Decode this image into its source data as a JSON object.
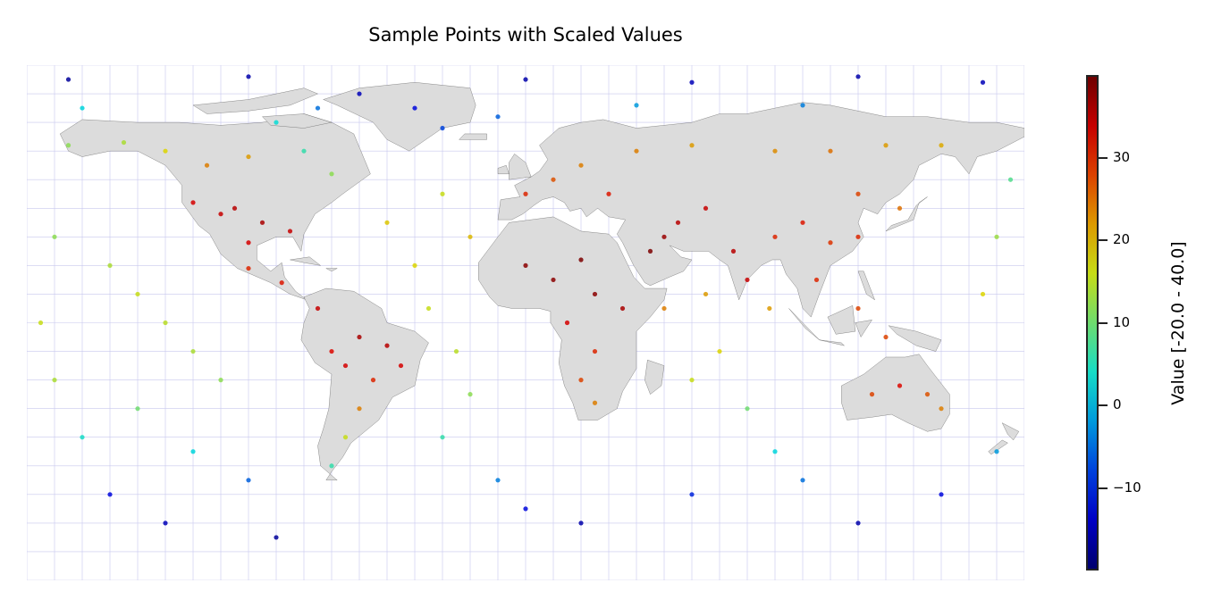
{
  "title": "Sample Points with Scaled Values",
  "colorbar": {
    "label": "Value [-20.0 - 40.0]",
    "ticks": [
      {
        "value": 30,
        "label": "30"
      },
      {
        "value": 20,
        "label": "20"
      },
      {
        "value": 10,
        "label": "10"
      },
      {
        "value": 0,
        "label": "0"
      },
      {
        "value": -10,
        "label": "−10"
      }
    ],
    "range": [
      -20,
      40
    ],
    "colormap": "jet"
  },
  "colors": {
    "land": "#dcdcdc",
    "coastline": "#222222",
    "grid": "#c8c8ee",
    "background": "#ffffff"
  },
  "chart_data": {
    "type": "scatter",
    "title": "Sample Points with Scaled Values",
    "projection": "equirectangular",
    "xlim": [
      -180,
      180
    ],
    "ylim": [
      -90,
      90
    ],
    "grid": true,
    "color_scale": {
      "min": -20,
      "max": 40,
      "cmap": "jet"
    },
    "points": [
      {
        "lon": -105,
        "lat": 40,
        "v": 35
      },
      {
        "lon": -110,
        "lat": 38,
        "v": 34
      },
      {
        "lon": -95,
        "lat": 35,
        "v": 36
      },
      {
        "lon": -120,
        "lat": 42,
        "v": 33
      },
      {
        "lon": -85,
        "lat": 32,
        "v": 34
      },
      {
        "lon": -100,
        "lat": 28,
        "v": 33
      },
      {
        "lon": -115,
        "lat": 55,
        "v": 24
      },
      {
        "lon": -100,
        "lat": 58,
        "v": 22
      },
      {
        "lon": -130,
        "lat": 60,
        "v": 18
      },
      {
        "lon": -145,
        "lat": 63,
        "v": 14
      },
      {
        "lon": -80,
        "lat": 60,
        "v": 6
      },
      {
        "lon": -70,
        "lat": 52,
        "v": 12
      },
      {
        "lon": -165,
        "lat": 62,
        "v": 12
      },
      {
        "lon": -90,
        "lat": 70,
        "v": 3
      },
      {
        "lon": -75,
        "lat": 75,
        "v": -5
      },
      {
        "lon": -60,
        "lat": 80,
        "v": -15
      },
      {
        "lon": -40,
        "lat": 75,
        "v": -12
      },
      {
        "lon": -30,
        "lat": 68,
        "v": -8
      },
      {
        "lon": -100,
        "lat": 19,
        "v": 30
      },
      {
        "lon": -88,
        "lat": 14,
        "v": 31
      },
      {
        "lon": -75,
        "lat": 5,
        "v": 34
      },
      {
        "lon": -60,
        "lat": -5,
        "v": 36
      },
      {
        "lon": -50,
        "lat": -8,
        "v": 35
      },
      {
        "lon": -65,
        "lat": -15,
        "v": 33
      },
      {
        "lon": -55,
        "lat": -20,
        "v": 30
      },
      {
        "lon": -60,
        "lat": -30,
        "v": 24
      },
      {
        "lon": -65,
        "lat": -40,
        "v": 16
      },
      {
        "lon": -70,
        "lat": -50,
        "v": 6
      },
      {
        "lon": -70,
        "lat": -10,
        "v": 32
      },
      {
        "lon": -45,
        "lat": -15,
        "v": 33
      },
      {
        "lon": 0,
        "lat": 20,
        "v": 38
      },
      {
        "lon": 10,
        "lat": 15,
        "v": 38
      },
      {
        "lon": 20,
        "lat": 22,
        "v": 39
      },
      {
        "lon": 25,
        "lat": 10,
        "v": 38
      },
      {
        "lon": 35,
        "lat": 5,
        "v": 36
      },
      {
        "lon": 15,
        "lat": 0,
        "v": 33
      },
      {
        "lon": 25,
        "lat": -10,
        "v": 30
      },
      {
        "lon": 20,
        "lat": -20,
        "v": 28
      },
      {
        "lon": 25,
        "lat": -28,
        "v": 24
      },
      {
        "lon": 45,
        "lat": 25,
        "v": 39
      },
      {
        "lon": 50,
        "lat": 30,
        "v": 37
      },
      {
        "lon": 55,
        "lat": 35,
        "v": 35
      },
      {
        "lon": 65,
        "lat": 40,
        "v": 34
      },
      {
        "lon": 75,
        "lat": 25,
        "v": 35
      },
      {
        "lon": 80,
        "lat": 15,
        "v": 34
      },
      {
        "lon": 90,
        "lat": 30,
        "v": 30
      },
      {
        "lon": 100,
        "lat": 35,
        "v": 31
      },
      {
        "lon": 110,
        "lat": 28,
        "v": 29
      },
      {
        "lon": 120,
        "lat": 30,
        "v": 30
      },
      {
        "lon": 105,
        "lat": 15,
        "v": 30
      },
      {
        "lon": 120,
        "lat": 5,
        "v": 28
      },
      {
        "lon": 130,
        "lat": -5,
        "v": 28
      },
      {
        "lon": 135,
        "lat": -22,
        "v": 32
      },
      {
        "lon": 125,
        "lat": -25,
        "v": 28
      },
      {
        "lon": 145,
        "lat": -25,
        "v": 27
      },
      {
        "lon": 150,
        "lat": -30,
        "v": 24
      },
      {
        "lon": 40,
        "lat": 60,
        "v": 24
      },
      {
        "lon": 60,
        "lat": 62,
        "v": 22
      },
      {
        "lon": 90,
        "lat": 60,
        "v": 23
      },
      {
        "lon": 110,
        "lat": 60,
        "v": 25
      },
      {
        "lon": 130,
        "lat": 62,
        "v": 22
      },
      {
        "lon": 150,
        "lat": 62,
        "v": 21
      },
      {
        "lon": 10,
        "lat": 50,
        "v": 27
      },
      {
        "lon": 20,
        "lat": 55,
        "v": 24
      },
      {
        "lon": 0,
        "lat": 45,
        "v": 30
      },
      {
        "lon": 30,
        "lat": 45,
        "v": 31
      },
      {
        "lon": 120,
        "lat": 45,
        "v": 28
      },
      {
        "lon": 135,
        "lat": 40,
        "v": 25
      },
      {
        "lon": -150,
        "lat": 20,
        "v": 14
      },
      {
        "lon": -140,
        "lat": 10,
        "v": 16
      },
      {
        "lon": -130,
        "lat": 0,
        "v": 15
      },
      {
        "lon": -120,
        "lat": -10,
        "v": 14
      },
      {
        "lon": -110,
        "lat": -20,
        "v": 12
      },
      {
        "lon": -140,
        "lat": -30,
        "v": 10
      },
      {
        "lon": -160,
        "lat": -40,
        "v": 4
      },
      {
        "lon": -120,
        "lat": -45,
        "v": 2
      },
      {
        "lon": -100,
        "lat": -55,
        "v": -6
      },
      {
        "lon": -150,
        "lat": -60,
        "v": -12
      },
      {
        "lon": -130,
        "lat": -70,
        "v": -15
      },
      {
        "lon": -90,
        "lat": -75,
        "v": -17
      },
      {
        "lon": -40,
        "lat": 20,
        "v": 18
      },
      {
        "lon": -35,
        "lat": 5,
        "v": 16
      },
      {
        "lon": -25,
        "lat": -10,
        "v": 15
      },
      {
        "lon": -20,
        "lat": -25,
        "v": 12
      },
      {
        "lon": -30,
        "lat": -40,
        "v": 6
      },
      {
        "lon": -10,
        "lat": -55,
        "v": -4
      },
      {
        "lon": 0,
        "lat": -65,
        "v": -12
      },
      {
        "lon": 20,
        "lat": -70,
        "v": -16
      },
      {
        "lon": 60,
        "lat": -20,
        "v": 16
      },
      {
        "lon": 70,
        "lat": -10,
        "v": 18
      },
      {
        "lon": 80,
        "lat": -30,
        "v": 10
      },
      {
        "lon": 90,
        "lat": -45,
        "v": 2
      },
      {
        "lon": 100,
        "lat": -55,
        "v": -5
      },
      {
        "lon": 60,
        "lat": -60,
        "v": -10
      },
      {
        "lon": 120,
        "lat": -70,
        "v": -16
      },
      {
        "lon": 150,
        "lat": -60,
        "v": -12
      },
      {
        "lon": 170,
        "lat": -45,
        "v": -2
      },
      {
        "lon": 165,
        "lat": 10,
        "v": 18
      },
      {
        "lon": 170,
        "lat": 30,
        "v": 13
      },
      {
        "lon": 175,
        "lat": 50,
        "v": 8
      },
      {
        "lon": -170,
        "lat": 30,
        "v": 12
      },
      {
        "lon": -175,
        "lat": 0,
        "v": 16
      },
      {
        "lon": -170,
        "lat": -20,
        "v": 14
      },
      {
        "lon": -165,
        "lat": 85,
        "v": -17
      },
      {
        "lon": -100,
        "lat": 86,
        "v": -16
      },
      {
        "lon": 0,
        "lat": 85,
        "v": -16
      },
      {
        "lon": 60,
        "lat": 84,
        "v": -15
      },
      {
        "lon": 120,
        "lat": 86,
        "v": -16
      },
      {
        "lon": 165,
        "lat": 84,
        "v": -15
      },
      {
        "lon": -10,
        "lat": 72,
        "v": -6
      },
      {
        "lon": 40,
        "lat": 76,
        "v": -2
      },
      {
        "lon": 100,
        "lat": 76,
        "v": -4
      },
      {
        "lon": -160,
        "lat": 75,
        "v": 2
      },
      {
        "lon": -30,
        "lat": 45,
        "v": 16
      },
      {
        "lon": -50,
        "lat": 35,
        "v": 19
      },
      {
        "lon": -20,
        "lat": 30,
        "v": 20
      },
      {
        "lon": 50,
        "lat": 5,
        "v": 24
      },
      {
        "lon": 65,
        "lat": 10,
        "v": 22
      },
      {
        "lon": 88,
        "lat": 5,
        "v": 22
      }
    ]
  }
}
